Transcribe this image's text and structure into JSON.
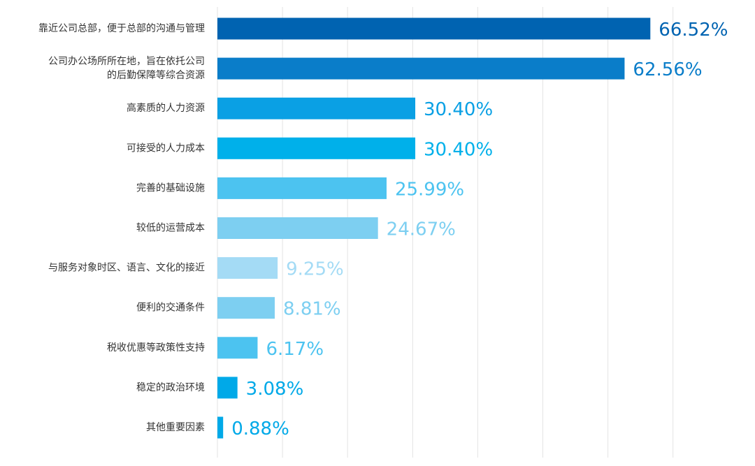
{
  "chart_data": {
    "type": "bar",
    "orientation": "horizontal",
    "categories": [
      [
        "靠近公司总部，便于总部的沟通与管理"
      ],
      [
        "公司办公场所所在地，旨在依托公司",
        "的后勤保障等综合资源"
      ],
      [
        "高素质的人力资源"
      ],
      [
        "可接受的人力成本"
      ],
      [
        "完善的基础设施"
      ],
      [
        "较低的运营成本"
      ],
      [
        "与服务对象时区、语言、文化的接近"
      ],
      [
        "便利的交通条件"
      ],
      [
        "税收优惠等政策性支持"
      ],
      [
        "稳定的政治环境"
      ],
      [
        "其他重要因素"
      ]
    ],
    "values": [
      66.52,
      62.56,
      30.4,
      30.4,
      25.99,
      24.67,
      9.25,
      8.81,
      6.17,
      3.08,
      0.88
    ],
    "value_labels": [
      "66.52%",
      "62.56%",
      "30.40%",
      "30.40%",
      "25.99%",
      "24.67%",
      "9.25%",
      "8.81%",
      "6.17%",
      "3.08%",
      "0.88%"
    ],
    "bar_colors": [
      "#0063B1",
      "#0A7DC9",
      "#0AA0E4",
      "#00B0EA",
      "#4CC3F0",
      "#7DCFF1",
      "#A4DBF5",
      "#7DCFF1",
      "#4CC3F0",
      "#00A9E8",
      "#00A9E8"
    ],
    "label_colors": [
      "#0063B1",
      "#0A7DC9",
      "#0AA0E4",
      "#00B0EA",
      "#4CC3F0",
      "#7DCFF1",
      "#A4DBF5",
      "#7DCFF1",
      "#4CC3F0",
      "#00A9E8",
      "#00A9E8"
    ],
    "xlim": [
      0,
      70
    ],
    "grid": true,
    "grid_step": 10,
    "title": "",
    "xlabel": "",
    "ylabel": ""
  }
}
